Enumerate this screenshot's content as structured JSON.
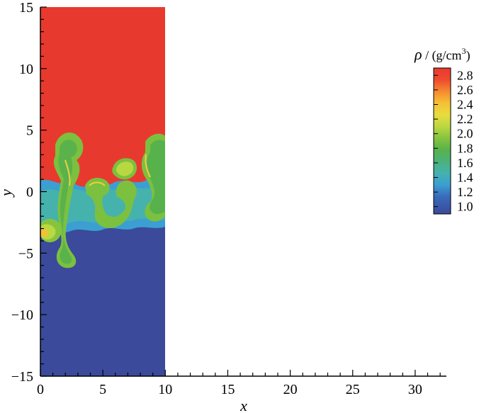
{
  "chart_data": {
    "type": "heatmap",
    "title": "",
    "xlabel": "x",
    "ylabel": "y",
    "xlim": [
      0,
      32.5
    ],
    "ylim": [
      -15,
      15
    ],
    "xticks": [
      "0",
      "5",
      "10",
      "15",
      "20",
      "25",
      "30"
    ],
    "yticks": [
      "15",
      "10",
      "5",
      "0",
      "−5",
      "−10",
      "−15"
    ],
    "domain_x": [
      0,
      10
    ],
    "domain_y": [
      -15,
      15
    ],
    "field": {
      "heavy_region_value": 2.9,
      "light_region_value": 1.0,
      "mixing_zone_y": [
        -5.5,
        5.0
      ]
    },
    "colorbar": {
      "title_symbol": "ρ",
      "title_unit": " / (g/cm",
      "title_exp": "3",
      "title_close": ")",
      "ticks": [
        "2.8",
        "2.6",
        "2.4",
        "2.2",
        "2.0",
        "1.8",
        "1.6",
        "1.4",
        "1.2",
        "1.0"
      ],
      "range": [
        0.9,
        2.9
      ],
      "colors": [
        "#e8392f",
        "#f07030",
        "#f5a030",
        "#f0d040",
        "#d8e040",
        "#b8d840",
        "#7cc040",
        "#50b050",
        "#48b08a",
        "#40b0b8",
        "#3a8ed0",
        "#3a5fb0",
        "#3b4a9a"
      ]
    }
  }
}
